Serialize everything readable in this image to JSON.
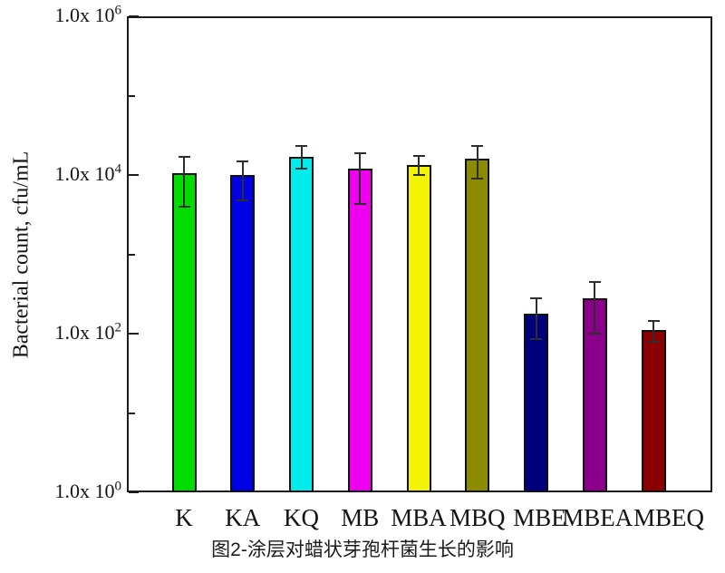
{
  "caption": "图2-涂层对蜡状芽孢杆菌生长的影响",
  "chart_data": {
    "type": "bar",
    "y_scale": "log10",
    "ylabel": "Bacterial count, cfu/mL",
    "ylim": [
      1,
      1000000
    ],
    "grid": "off",
    "legend": "none",
    "categories": [
      "K",
      "KA",
      "KQ",
      "MB",
      "MBA",
      "MBQ",
      "MBE",
      "MBEA",
      "MBEQ"
    ],
    "values": [
      10500,
      10000,
      17000,
      12000,
      13500,
      16000,
      180,
      280,
      110
    ],
    "error_low": [
      4000,
      4800,
      12000,
      4300,
      10000,
      9000,
      85,
      100,
      78
    ],
    "error_high": [
      17000,
      15000,
      23500,
      19000,
      17500,
      23000,
      280,
      450,
      145
    ],
    "bar_colors": [
      "#00db00",
      "#0000e4",
      "#00ecec",
      "#ee00ee",
      "#f4f400",
      "#8b8b00",
      "#00007d",
      "#8b008b",
      "#8b0000"
    ],
    "bar_edge_color": "#101010",
    "error_bar_color": "#2e2e2e",
    "y_tick_label_base": "1.0x 10",
    "y_major_ticks": [
      {
        "exp": "0",
        "value": 1,
        "label": "1.0x 10^0"
      },
      {
        "exp": "2",
        "value": 100,
        "label": "1.0x 10^2"
      },
      {
        "exp": "4",
        "value": 10000,
        "label": "1.0x 10^4"
      },
      {
        "exp": "6",
        "value": 1000000,
        "label": "1.0x 10^6"
      }
    ],
    "y_minor_ticks": [
      10,
      1000,
      100000
    ]
  }
}
